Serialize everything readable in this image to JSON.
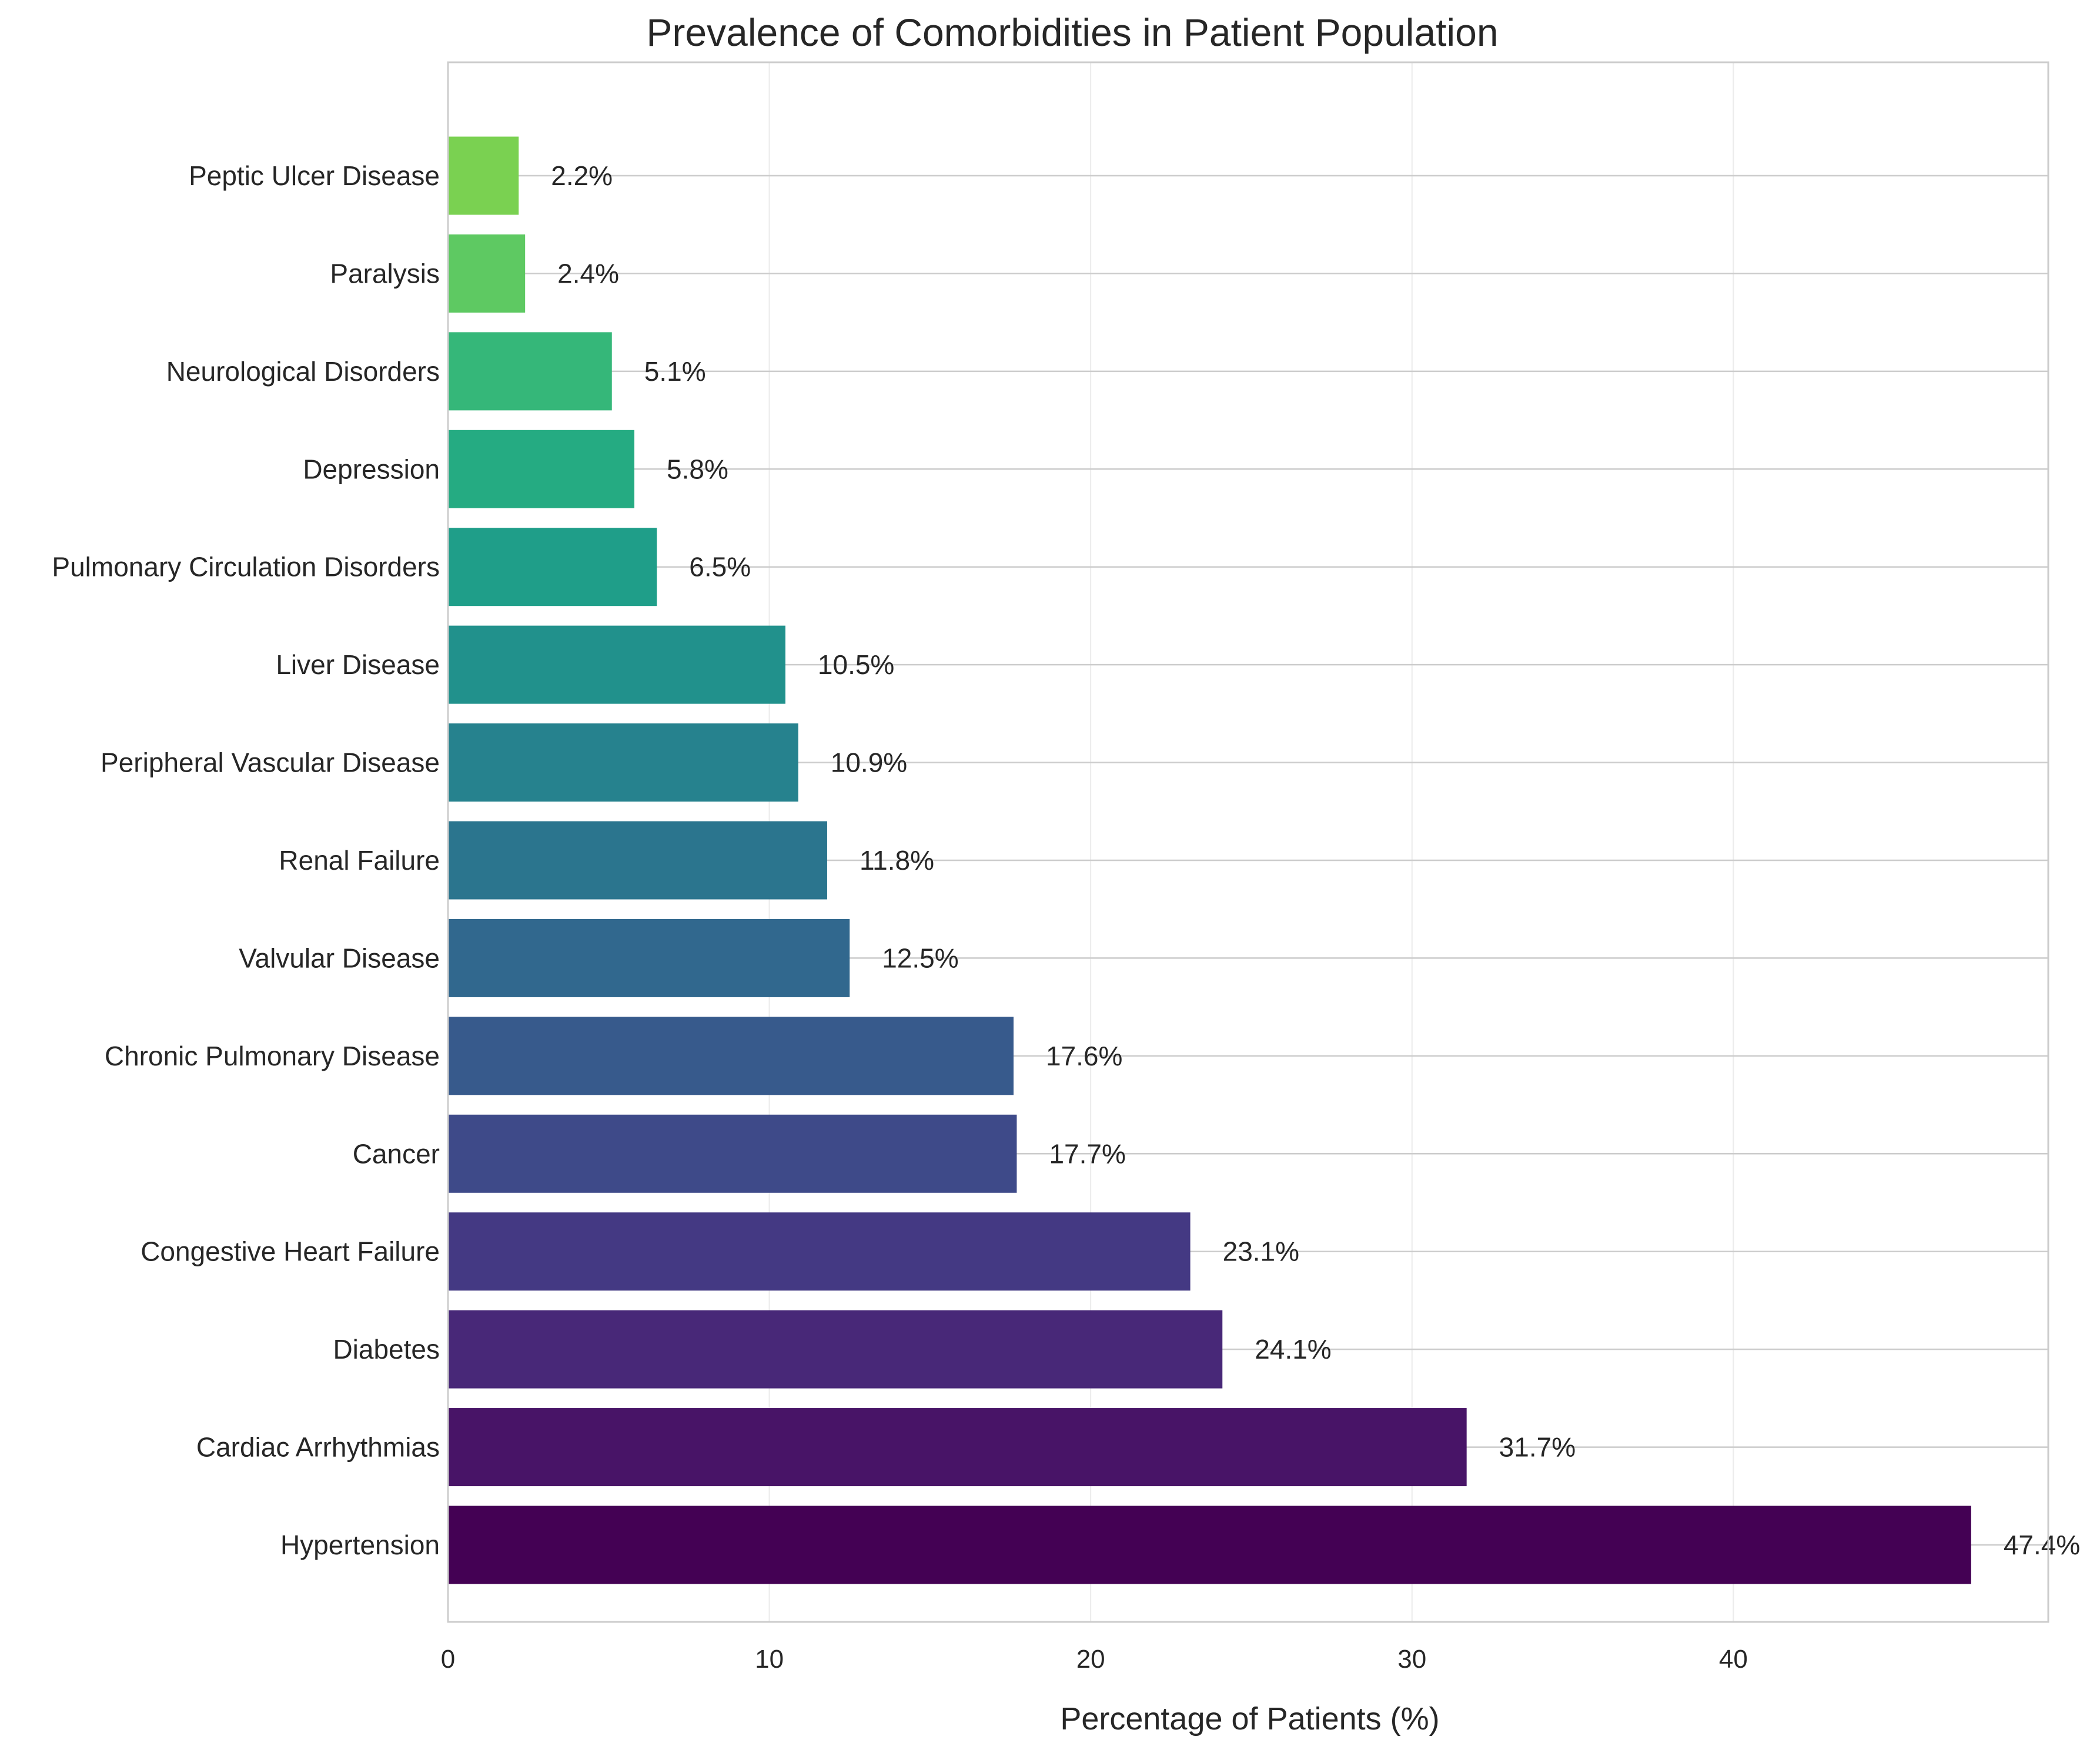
{
  "chart_data": {
    "type": "bar",
    "orientation": "horizontal",
    "title": "Prevalence of Comorbidities in Patient Population",
    "xlabel": "Percentage of Patients (%)",
    "ylabel": "",
    "xlim": [
      0,
      49.8
    ],
    "xticks": [
      0,
      10,
      20,
      30,
      40
    ],
    "grid": true,
    "legend": "none",
    "value_suffix": "%",
    "colormap": "viridis",
    "categories": [
      "Hypertension",
      "Cardiac Arrhythmias",
      "Diabetes",
      "Congestive Heart Failure",
      "Cancer",
      "Chronic Pulmonary Disease",
      "Valvular Disease",
      "Renal Failure",
      "Peripheral Vascular Disease",
      "Liver Disease",
      "Pulmonary Circulation Disorders",
      "Depression",
      "Neurological Disorders",
      "Paralysis",
      "Peptic Ulcer Disease"
    ],
    "values": [
      47.4,
      31.7,
      24.1,
      23.1,
      17.7,
      17.6,
      12.5,
      11.8,
      10.9,
      10.5,
      6.5,
      5.8,
      5.1,
      2.4,
      2.2
    ],
    "colors": [
      "#440154",
      "#481467",
      "#482878",
      "#443983",
      "#3e4a89",
      "#375a8c",
      "#31688e",
      "#2b758e",
      "#26828e",
      "#21918c",
      "#1f9e89",
      "#25ab82",
      "#35b779",
      "#5ec962",
      "#7ad151"
    ]
  }
}
